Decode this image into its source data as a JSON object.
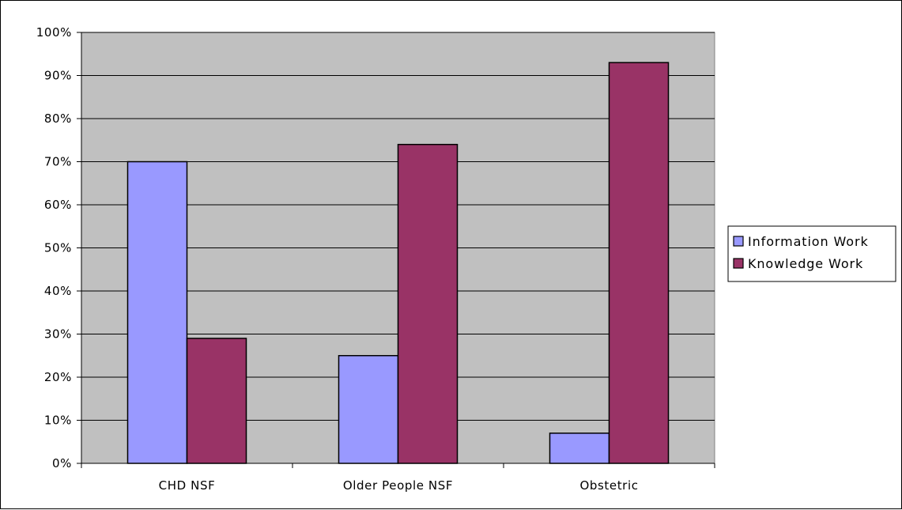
{
  "chart_data": {
    "type": "bar",
    "categories": [
      "CHD NSF",
      "Older People NSF",
      "Obstetric"
    ],
    "series": [
      {
        "name": "Information Work",
        "values": [
          70,
          25,
          7
        ],
        "color": "#9999FF"
      },
      {
        "name": "Knowledge Work",
        "values": [
          29,
          74,
          93
        ],
        "color": "#993366"
      }
    ],
    "y_ticks": [
      "0%",
      "10%",
      "20%",
      "30%",
      "40%",
      "50%",
      "60%",
      "70%",
      "80%",
      "90%",
      "100%"
    ],
    "ylim": [
      0,
      100
    ],
    "y_unit": "%",
    "title": "",
    "xlabel": "",
    "ylabel": "",
    "grid": true,
    "legend_position": "right",
    "plot_background": "#C0C0C0",
    "gridline_color": "#000000"
  }
}
